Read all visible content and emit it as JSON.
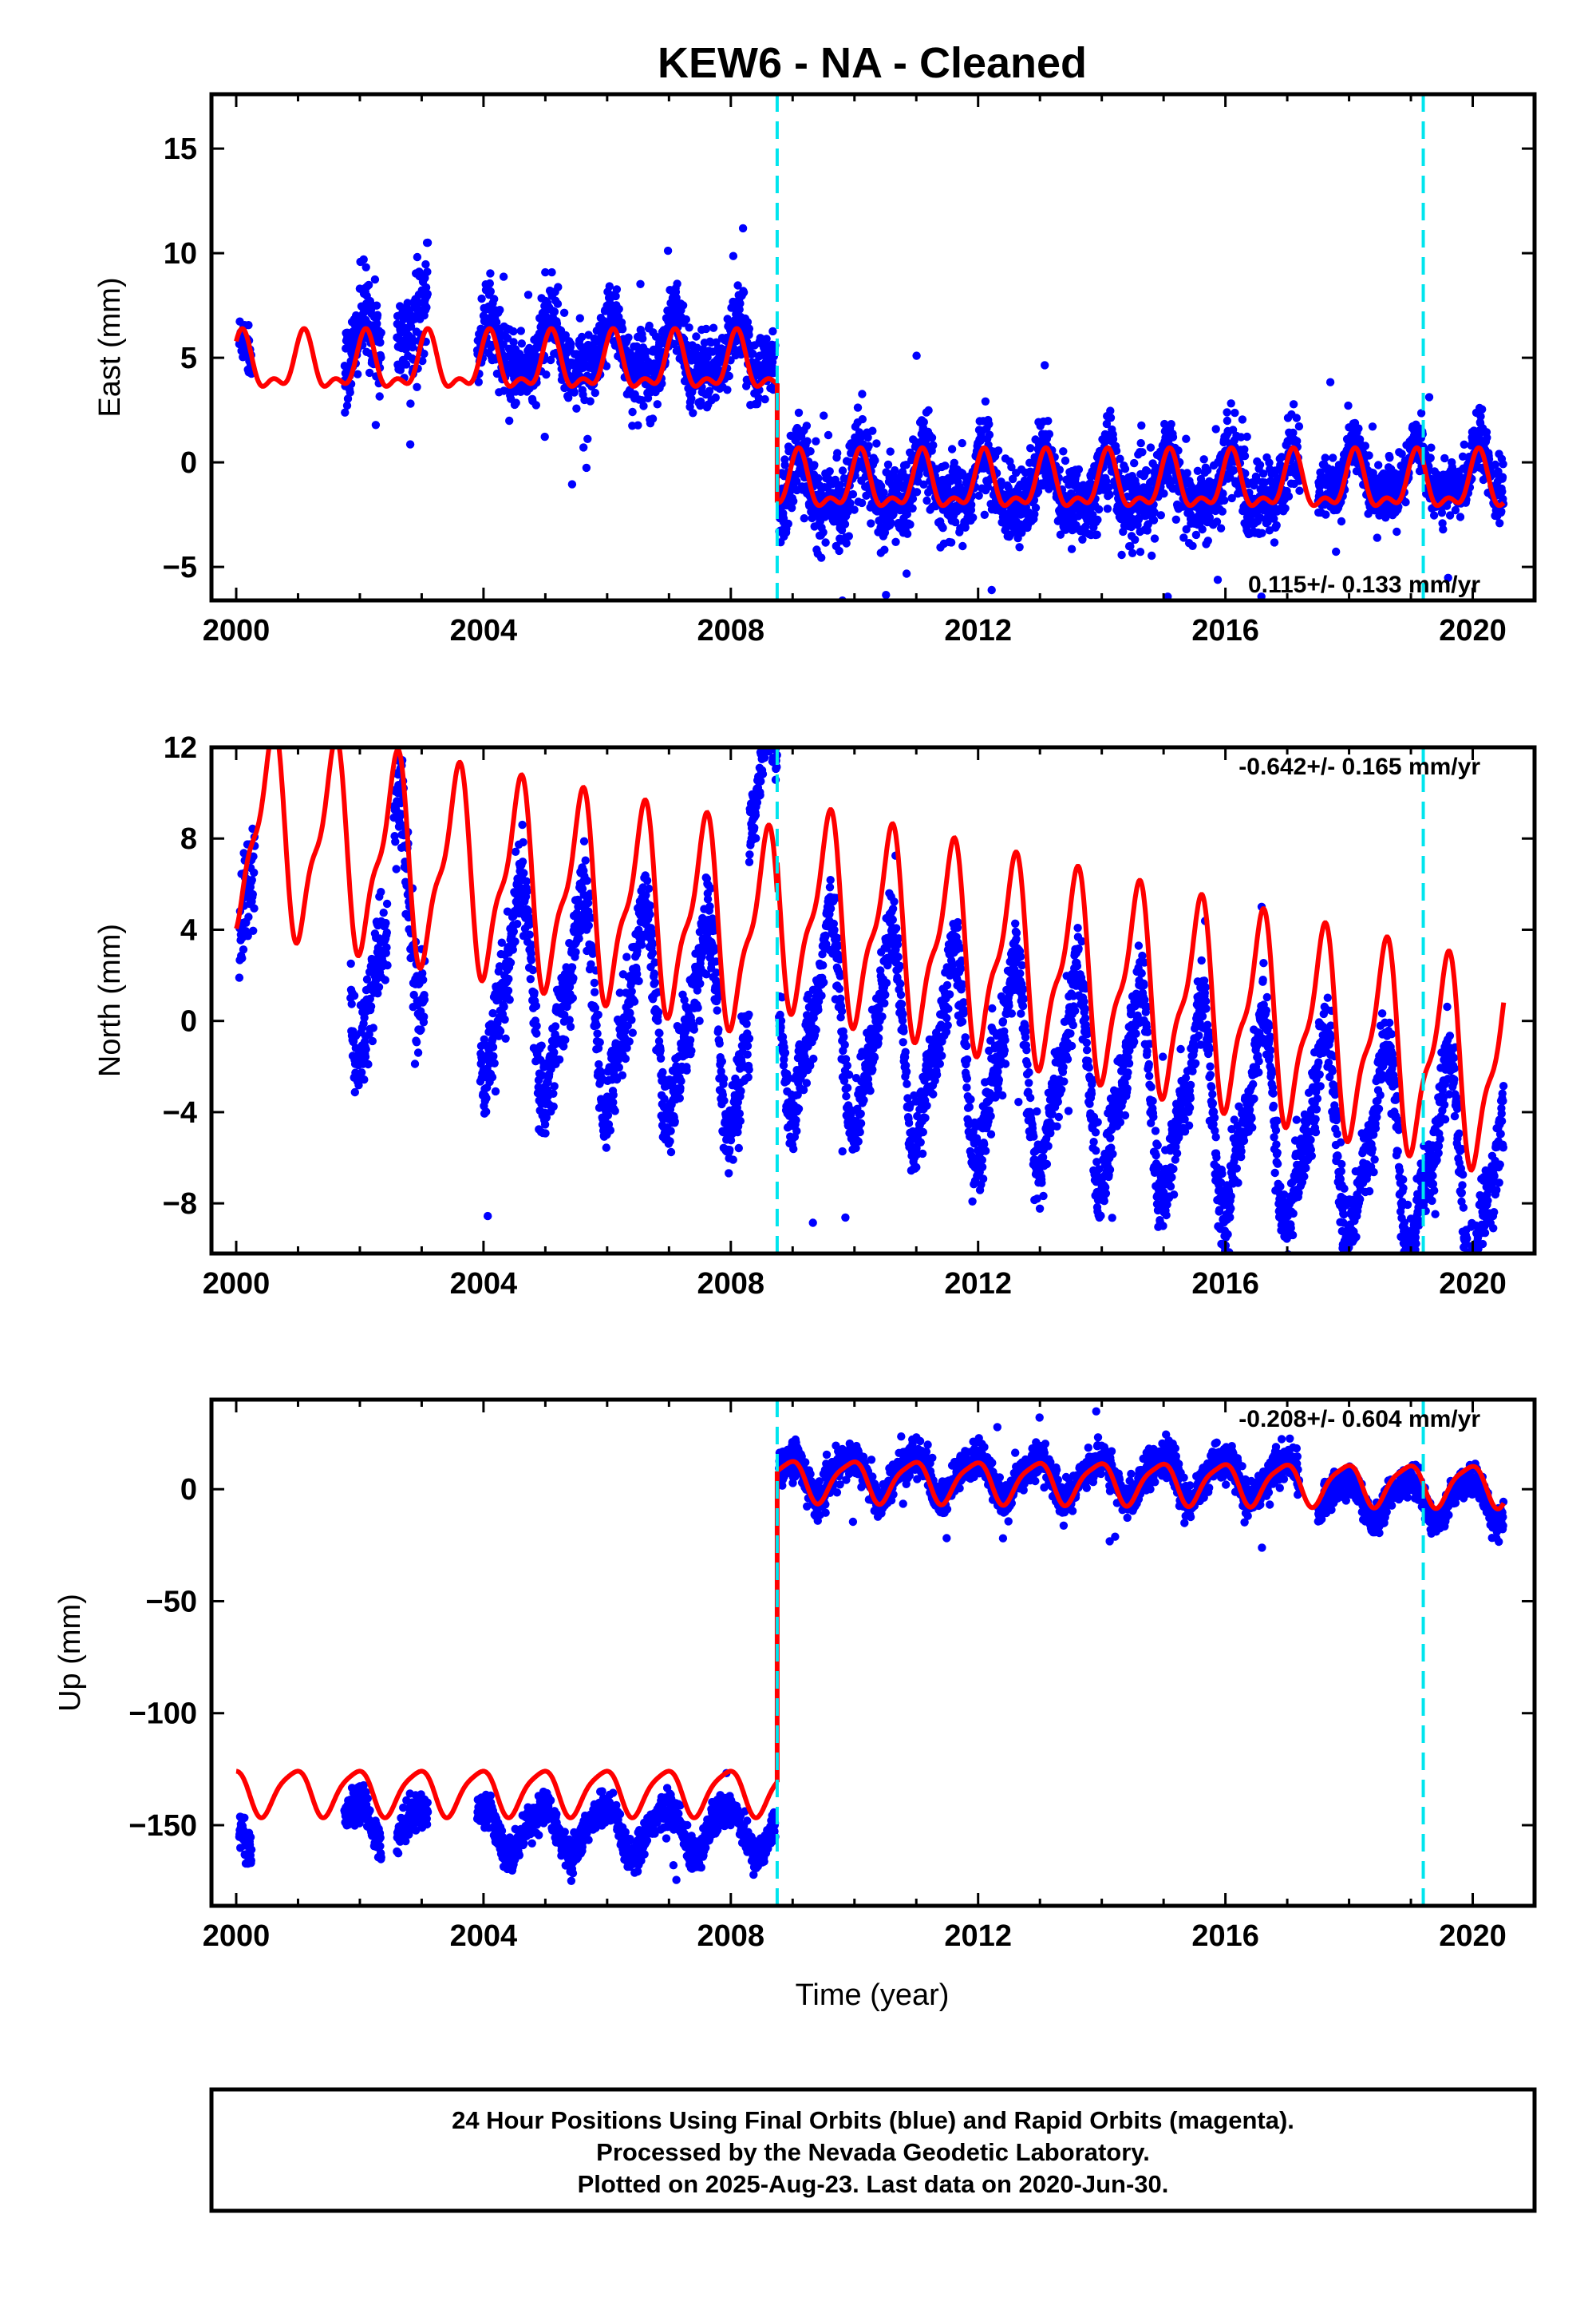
{
  "title": "KEW6  - NA - Cleaned",
  "footer": {
    "line1": "24 Hour Positions Using Final Orbits (blue) and Rapid Orbits (magenta).",
    "line2": "Processed by the Nevada Geodetic Laboratory.",
    "line3": "Plotted on 2025-Aug-23. Last data on 2020-Jun-30."
  },
  "colors": {
    "data": "#0000ff",
    "model": "#ff0000",
    "step": "#00e5ee",
    "frame": "#000000"
  },
  "chart_data": [
    {
      "type": "scatter",
      "name": "east",
      "ylabel": "East (mm)",
      "xlabel": "",
      "xlim": [
        1999.6,
        2021.0
      ],
      "ylim": [
        -6.6,
        17.6
      ],
      "xticks": [
        2000,
        2004,
        2008,
        2012,
        2016,
        2020
      ],
      "yticks": [
        -5,
        0,
        5,
        10,
        15
      ],
      "rate": "0.115+/- 0.133 mm/yr",
      "rate_position": "bottom-right",
      "step_lines": [
        2008.75,
        2019.2
      ],
      "model": {
        "segments": [
          {
            "start": 2000.0,
            "end": 2008.75,
            "offset": 4.6,
            "trend": 0.0,
            "amp1": 1.2,
            "phase1": 1.0,
            "amp2": 0.6,
            "phase2": 0.3
          },
          {
            "start": 2008.75,
            "end": 2020.5,
            "offset": -1.1,
            "trend": 0.0,
            "amp1": 1.2,
            "phase1": 1.0,
            "amp2": 0.6,
            "phase2": 0.3
          }
        ]
      },
      "data_segments": [
        {
          "start": 2000.05,
          "end": 2000.25,
          "offset": 4.2,
          "scatter": 1.1
        },
        {
          "start": 2001.75,
          "end": 2002.35,
          "offset": 5.4,
          "scatter": 2.0
        },
        {
          "start": 2002.6,
          "end": 2003.1,
          "offset": 6.6,
          "scatter": 2.3
        },
        {
          "start": 2003.9,
          "end": 2008.72,
          "offset": 5.2,
          "scatter": 1.6
        },
        {
          "start": 2008.78,
          "end": 2017.2,
          "offset": -1.2,
          "scatter": 1.7
        },
        {
          "start": 2017.5,
          "end": 2020.5,
          "offset": -0.6,
          "scatter": 1.2
        }
      ]
    },
    {
      "type": "scatter",
      "name": "north",
      "ylabel": "North (mm)",
      "xlabel": "",
      "xlim": [
        1999.6,
        2021.0
      ],
      "ylim": [
        -10.2,
        12.0
      ],
      "xticks": [
        2000,
        2004,
        2008,
        2012,
        2016,
        2020
      ],
      "yticks": [
        -8,
        -4,
        0,
        4,
        8,
        12
      ],
      "rate": "-0.642+/- 0.165 mm/yr",
      "rate_position": "top-right",
      "step_lines": [
        2008.75,
        2019.2
      ],
      "model": {
        "segments": [
          {
            "start": 2000.0,
            "end": 2008.75,
            "offset": 3.0,
            "trend": -0.55,
            "amp1": 4.0,
            "phase1": -1.9,
            "amp2": 1.4,
            "phase2": -0.5
          },
          {
            "start": 2008.75,
            "end": 2020.5,
            "offset": 4.2,
            "trend": -0.62,
            "amp1": 4.0,
            "phase1": -1.9,
            "amp2": 1.4,
            "phase2": -0.5
          }
        ]
      },
      "data_segments": [
        {
          "start": 2000.05,
          "end": 2000.3,
          "offset": 1.5,
          "scatter": 1.6
        },
        {
          "start": 2001.85,
          "end": 2002.45,
          "offset": -1.5,
          "scatter": 2.0
        },
        {
          "start": 2002.55,
          "end": 2003.05,
          "offset": 1.0,
          "scatter": 2.0
        },
        {
          "start": 2003.95,
          "end": 2008.3,
          "offset": -1.6,
          "scatter": 1.7
        },
        {
          "start": 2008.3,
          "end": 2008.75,
          "offset": 7.5,
          "scatter": 1.4
        },
        {
          "start": 2008.78,
          "end": 2020.5,
          "offset": -0.4,
          "scatter": 1.5
        }
      ]
    },
    {
      "type": "scatter",
      "name": "up",
      "ylabel": "Up (mm)",
      "xlabel": "Time (year)",
      "xlim": [
        1999.6,
        2021.0
      ],
      "ylim": [
        -186,
        40
      ],
      "xticks": [
        2000,
        2004,
        2008,
        2012,
        2016,
        2020
      ],
      "yticks": [
        -150,
        -100,
        -50,
        0
      ],
      "rate": "-0.208+/- 0.604 mm/yr",
      "rate_position": "top-right",
      "step_lines": [
        2008.75,
        2019.2
      ],
      "model": {
        "segments": [
          {
            "start": 2000.0,
            "end": 2008.75,
            "offset": -135.0,
            "trend": 0.0,
            "amp1": 10.0,
            "phase1": 2.0,
            "amp2": 2.0,
            "phase2": 0.0
          },
          {
            "start": 2008.75,
            "end": 2020.5,
            "offset": 4.0,
            "trend": -0.2,
            "amp1": 9.0,
            "phase1": 2.0,
            "amp2": 2.0,
            "phase2": 0.0
          }
        ]
      },
      "data_segments": [
        {
          "start": 2000.05,
          "end": 2000.25,
          "offset": -160.0,
          "scatter": 8.0
        },
        {
          "start": 2001.75,
          "end": 2002.35,
          "offset": -150.0,
          "scatter": 7.0
        },
        {
          "start": 2002.6,
          "end": 2003.1,
          "offset": -152.0,
          "scatter": 7.0
        },
        {
          "start": 2003.9,
          "end": 2008.72,
          "offset": -152.0,
          "scatter": 7.0
        },
        {
          "start": 2008.78,
          "end": 2017.2,
          "offset": 6.0,
          "scatter": 7.0
        },
        {
          "start": 2017.5,
          "end": 2020.5,
          "offset": -2.0,
          "scatter": 6.0
        }
      ]
    }
  ]
}
